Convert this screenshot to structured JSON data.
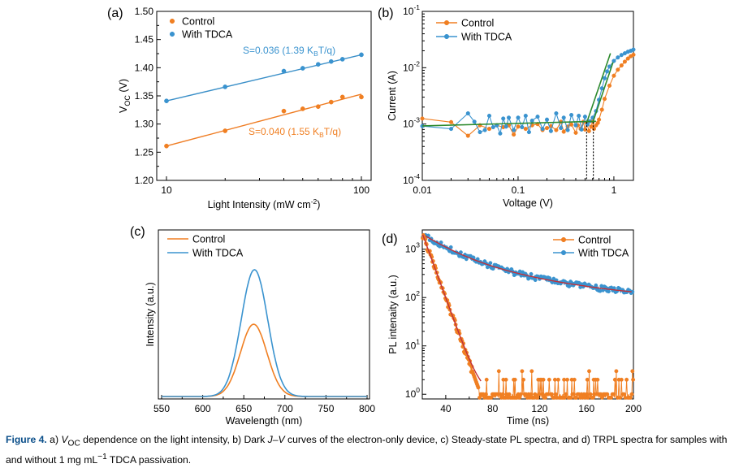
{
  "colors": {
    "control": "#f07f22",
    "tdca": "#3a93cf",
    "fit_a_control": "#ef7d24",
    "fit_a_tdca": "#3a8fc8",
    "fit_b": "#2d8a2d",
    "fit_d": "#c0303a",
    "caption_label": "#0b4f8a"
  },
  "chart_data": [
    {
      "panel": "(a)",
      "type": "scatter",
      "xscale": "log",
      "xlim": [
        10,
        100
      ],
      "ylim": [
        1.2,
        1.5
      ],
      "xticks": [
        "10",
        "100"
      ],
      "yticks": [
        "1.20",
        "1.25",
        "1.30",
        "1.35",
        "1.40",
        "1.45",
        "1.50"
      ],
      "ylabel_parts": [
        "V",
        "OC",
        " (V)"
      ],
      "xlabel_parts": [
        "Light Intensity (mW cm",
        "-2",
        ")"
      ],
      "legend": [
        "Control",
        "With TDCA"
      ],
      "legend_position": "top-left",
      "series": [
        {
          "name": "Control",
          "x": [
            10,
            20,
            40,
            50,
            60,
            70,
            80,
            100
          ],
          "y": [
            1.261,
            1.288,
            1.323,
            1.327,
            1.331,
            1.339,
            1.348,
            1.348
          ]
        },
        {
          "name": "With TDCA",
          "x": [
            10,
            20,
            40,
            50,
            60,
            70,
            80,
            100
          ],
          "y": [
            1.341,
            1.366,
            1.394,
            1.399,
            1.406,
            1.411,
            1.415,
            1.423
          ]
        }
      ],
      "fits": [
        {
          "series": "Control",
          "x": [
            10,
            100
          ],
          "y": [
            1.261,
            1.353
          ]
        },
        {
          "series": "With TDCA",
          "x": [
            10,
            100
          ],
          "y": [
            1.341,
            1.423
          ]
        }
      ],
      "annotations": {
        "tdca": {
          "prefix": "S=0.036 (1.39 K",
          "sub": "B",
          "suffix": "T/q)"
        },
        "control": {
          "prefix": "S=0.040 (1.55 K",
          "sub": "B",
          "suffix": "T/q)"
        }
      }
    },
    {
      "panel": "(b)",
      "type": "line",
      "xscale": "log",
      "yscale": "log",
      "xlim": [
        0.01,
        1.6
      ],
      "ylim": [
        0.0001,
        0.1
      ],
      "xticks": [
        "0.01",
        "0.1",
        "1"
      ],
      "yticks": [
        {
          "base": "10",
          "exp": "-4"
        },
        {
          "base": "10",
          "exp": "-3"
        },
        {
          "base": "10",
          "exp": "-2"
        },
        {
          "base": "10",
          "exp": "-1"
        }
      ],
      "ylabel": "Current (A)",
      "xlabel": "Voltage (V)",
      "legend": [
        "Control",
        "With TDCA"
      ],
      "legend_position": "top-center",
      "series": [
        {
          "name": "Control",
          "x": [
            0.01,
            0.02,
            0.03,
            0.04,
            0.05,
            0.06,
            0.07,
            0.08,
            0.09,
            0.1,
            0.12,
            0.14,
            0.16,
            0.18,
            0.2,
            0.22,
            0.25,
            0.28,
            0.3,
            0.33,
            0.36,
            0.4,
            0.42,
            0.45,
            0.48,
            0.5,
            0.52,
            0.55,
            0.58,
            0.6,
            0.62,
            0.65,
            0.68,
            0.7,
            0.75,
            0.8,
            0.9,
            1.0,
            1.1,
            1.2,
            1.3,
            1.4,
            1.5,
            1.6
          ],
          "y": [
            0.00125,
            0.00108,
            0.00062,
            0.00095,
            0.00082,
            0.00095,
            0.00088,
            0.00095,
            0.00065,
            0.0009,
            0.00082,
            0.00095,
            0.001,
            0.00078,
            0.00085,
            0.00092,
            0.00078,
            0.0011,
            0.00073,
            0.0009,
            0.00098,
            0.0007,
            0.00095,
            0.00082,
            0.0011,
            0.0008,
            0.00105,
            0.00075,
            0.0009,
            0.0011,
            0.00082,
            0.00095,
            0.00105,
            0.0012,
            0.0018,
            0.0028,
            0.0048,
            0.0072,
            0.0092,
            0.011,
            0.0128,
            0.0145,
            0.016,
            0.017
          ]
        },
        {
          "name": "With TDCA",
          "x": [
            0.01,
            0.02,
            0.03,
            0.035,
            0.04,
            0.045,
            0.05,
            0.055,
            0.06,
            0.065,
            0.07,
            0.075,
            0.08,
            0.09,
            0.1,
            0.11,
            0.12,
            0.13,
            0.14,
            0.16,
            0.18,
            0.2,
            0.22,
            0.25,
            0.28,
            0.3,
            0.33,
            0.36,
            0.4,
            0.43,
            0.46,
            0.5,
            0.53,
            0.56,
            0.6,
            0.65,
            0.7,
            0.75,
            0.8,
            0.85,
            0.9,
            1.0,
            1.1,
            1.2,
            1.3,
            1.4,
            1.5,
            1.6
          ],
          "y": [
            0.00092,
            0.00082,
            0.00155,
            0.0011,
            0.00072,
            0.00078,
            0.0014,
            0.00088,
            0.00095,
            0.00068,
            0.00125,
            0.0009,
            0.0013,
            0.00078,
            0.0013,
            0.00088,
            0.0014,
            0.00072,
            0.00115,
            0.00135,
            0.00082,
            0.0012,
            0.00075,
            0.00155,
            0.00085,
            0.0013,
            0.00078,
            0.00145,
            0.00095,
            0.0014,
            0.0008,
            0.00135,
            0.00098,
            0.00112,
            0.0013,
            0.0017,
            0.0027,
            0.0043,
            0.0065,
            0.0086,
            0.0105,
            0.0132,
            0.0152,
            0.0168,
            0.018,
            0.0192,
            0.02,
            0.021
          ]
        }
      ],
      "fits": [
        {
          "x": [
            0.01,
            0.65
          ],
          "y": [
            0.00093,
            0.00112
          ]
        },
        {
          "x": [
            0.52,
            0.92
          ],
          "y": [
            0.00105,
            0.018
          ]
        },
        {
          "x": [
            0.6,
            0.98
          ],
          "y": [
            0.00105,
            0.0125
          ]
        }
      ],
      "markers_x": [
        0.52,
        0.61
      ]
    },
    {
      "panel": "(c)",
      "type": "line",
      "xlim": [
        550,
        800
      ],
      "xticks": [
        "550",
        "600",
        "650",
        "700",
        "750",
        "800"
      ],
      "ylabel": "Intensity (a.u.)",
      "xlabel": "Wavelength (nm)",
      "legend": [
        "Control",
        "With TDCA"
      ],
      "legend_position": "top-left",
      "series": [
        {
          "name": "Control",
          "peak": 662,
          "amplitude": 0.57,
          "fwhm": 38
        },
        {
          "name": "With TDCA",
          "peak": 663,
          "amplitude": 1.0,
          "fwhm": 38
        }
      ]
    },
    {
      "panel": "(d)",
      "type": "scatter",
      "yscale": "log",
      "xlim": [
        20,
        200
      ],
      "ylim": [
        0.8,
        2500
      ],
      "xticks": [
        "40",
        "80",
        "120",
        "160",
        "200"
      ],
      "yticks": [
        {
          "base": "10",
          "exp": "0"
        },
        {
          "base": "10",
          "exp": "1"
        },
        {
          "base": "10",
          "exp": "2"
        },
        {
          "base": "10",
          "exp": "3"
        }
      ],
      "ylabel": "PL intenaity (a.u.)",
      "xlabel": "Time (ns)",
      "legend": [
        "Control",
        "With TDCA"
      ],
      "legend_position": "top-right",
      "series": [
        {
          "name": "Control",
          "t0": 20.4,
          "peak": 2000,
          "tau_ns": 6.5,
          "noise_floor": 1
        },
        {
          "name": "With TDCA",
          "t0": 20.4,
          "peak": 1950,
          "fast_amp": 1300,
          "fast_tau_ns": 22,
          "slow_amp": 650,
          "slow_tau_ns": 70,
          "offset": 80
        }
      ]
    }
  ],
  "caption": {
    "label": "Figure 4.",
    "segments": [
      " a) ",
      {
        "i": "V"
      },
      {
        "sub": "OC"
      },
      " dependence on the light intensity, b) Dark ",
      {
        "i": "J–V"
      },
      " curves of the electron-only device, c) Steady-state PL spectra, and d) TRPL spectra for samples with and without 1 mg mL",
      {
        "sup": "−1"
      },
      " TDCA passivation."
    ]
  }
}
